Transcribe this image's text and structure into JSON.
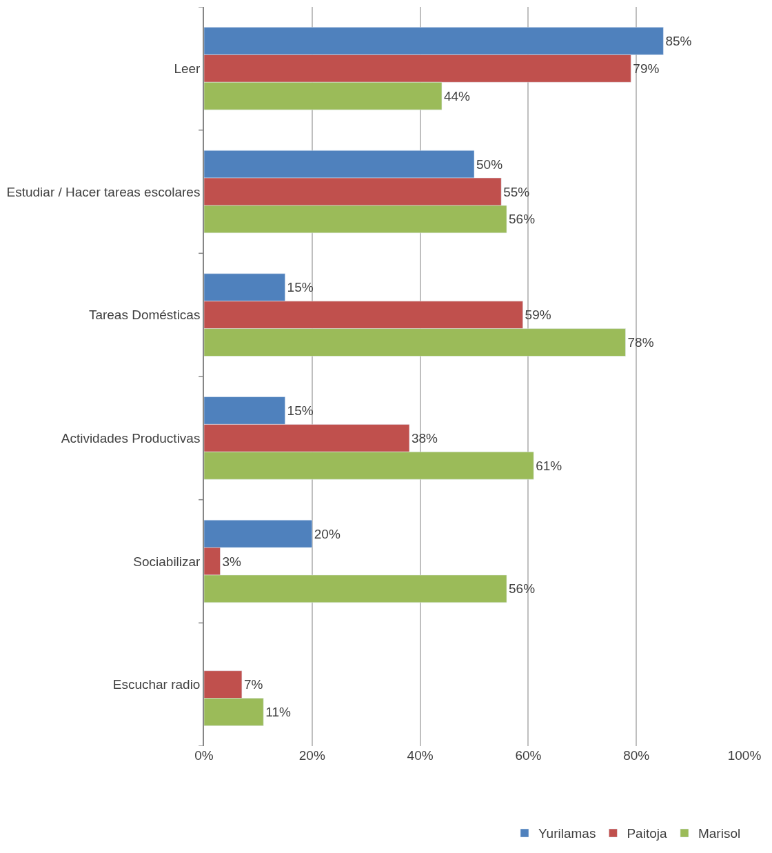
{
  "chart_data": {
    "type": "bar",
    "orientation": "horizontal",
    "categories": [
      "Leer",
      "Estudiar / Hacer tareas escolares",
      "Tareas Domésticas",
      "Actividades Productivas",
      "Sociabilizar",
      "Escuchar radio"
    ],
    "series": [
      {
        "name": "Yurilamas",
        "color": "#4f81bd",
        "values": [
          85,
          50,
          15,
          15,
          20,
          null
        ],
        "value_labels": [
          "85%",
          "50%",
          "15%",
          "15%",
          "20%",
          null
        ]
      },
      {
        "name": "Paitoja",
        "color": "#c0504d",
        "values": [
          79,
          55,
          59,
          38,
          3,
          7
        ],
        "value_labels": [
          "79%",
          "55%",
          "59%",
          "38%",
          "3%",
          "7%"
        ]
      },
      {
        "name": "Marisol",
        "color": "#9bbb59",
        "values": [
          44,
          56,
          78,
          61,
          56,
          11
        ],
        "value_labels": [
          "44%",
          "56%",
          "78%",
          "61%",
          "56%",
          "11%"
        ]
      }
    ],
    "xlim": [
      0,
      100
    ],
    "xticks": [
      {
        "value": 0,
        "label": "0%"
      },
      {
        "value": 20,
        "label": "20%"
      },
      {
        "value": 40,
        "label": "40%"
      },
      {
        "value": 60,
        "label": "60%"
      },
      {
        "value": 80,
        "label": "80%"
      },
      {
        "value": 100,
        "label": "100%"
      }
    ],
    "grid": "x",
    "legend": "bottom"
  }
}
